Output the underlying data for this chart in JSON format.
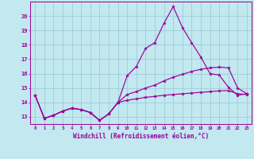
{
  "xlabel": "Windchill (Refroidissement éolien,°C)",
  "background_color": "#c2e8f0",
  "grid_color": "#a0ccd8",
  "line_color": "#990099",
  "x_values": [
    0,
    1,
    2,
    3,
    4,
    5,
    6,
    7,
    8,
    9,
    10,
    11,
    12,
    13,
    14,
    15,
    16,
    17,
    18,
    19,
    20,
    21,
    22,
    23
  ],
  "line1": [
    14.5,
    12.9,
    13.1,
    13.4,
    13.6,
    13.5,
    13.3,
    12.75,
    13.2,
    14.0,
    15.85,
    16.5,
    17.75,
    18.15,
    19.5,
    20.65,
    19.2,
    18.15,
    17.15,
    16.0,
    15.9,
    15.05,
    14.5,
    14.6
  ],
  "line2": [
    14.5,
    12.9,
    13.1,
    13.4,
    13.6,
    13.5,
    13.3,
    12.75,
    13.2,
    14.0,
    14.55,
    14.75,
    15.0,
    15.2,
    15.5,
    15.75,
    15.95,
    16.15,
    16.3,
    16.4,
    16.45,
    16.4,
    15.0,
    14.6
  ],
  "line3": [
    14.5,
    12.9,
    13.1,
    13.4,
    13.6,
    13.5,
    13.3,
    12.75,
    13.2,
    14.0,
    14.15,
    14.25,
    14.35,
    14.42,
    14.5,
    14.55,
    14.6,
    14.65,
    14.7,
    14.75,
    14.8,
    14.82,
    14.6,
    14.55
  ],
  "ylim": [
    12.5,
    21.0
  ],
  "xlim": [
    -0.5,
    23.5
  ],
  "yticks": [
    13,
    14,
    15,
    16,
    17,
    18,
    19,
    20
  ],
  "xticks": [
    0,
    1,
    2,
    3,
    4,
    5,
    6,
    7,
    8,
    9,
    10,
    11,
    12,
    13,
    14,
    15,
    16,
    17,
    18,
    19,
    20,
    21,
    22,
    23
  ]
}
